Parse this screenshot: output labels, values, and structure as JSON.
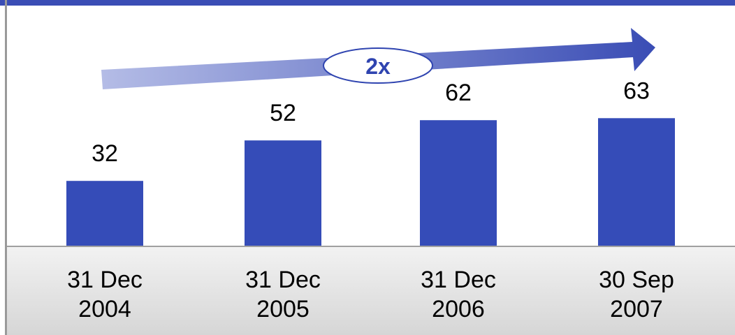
{
  "chart_data": {
    "type": "bar",
    "categories": [
      "31 Dec 2004",
      "31 Dec 2005",
      "31 Dec 2006",
      "30 Sep 2007"
    ],
    "values": [
      32,
      52,
      62,
      63
    ],
    "color": "#354cb8",
    "annotation": "2x"
  }
}
